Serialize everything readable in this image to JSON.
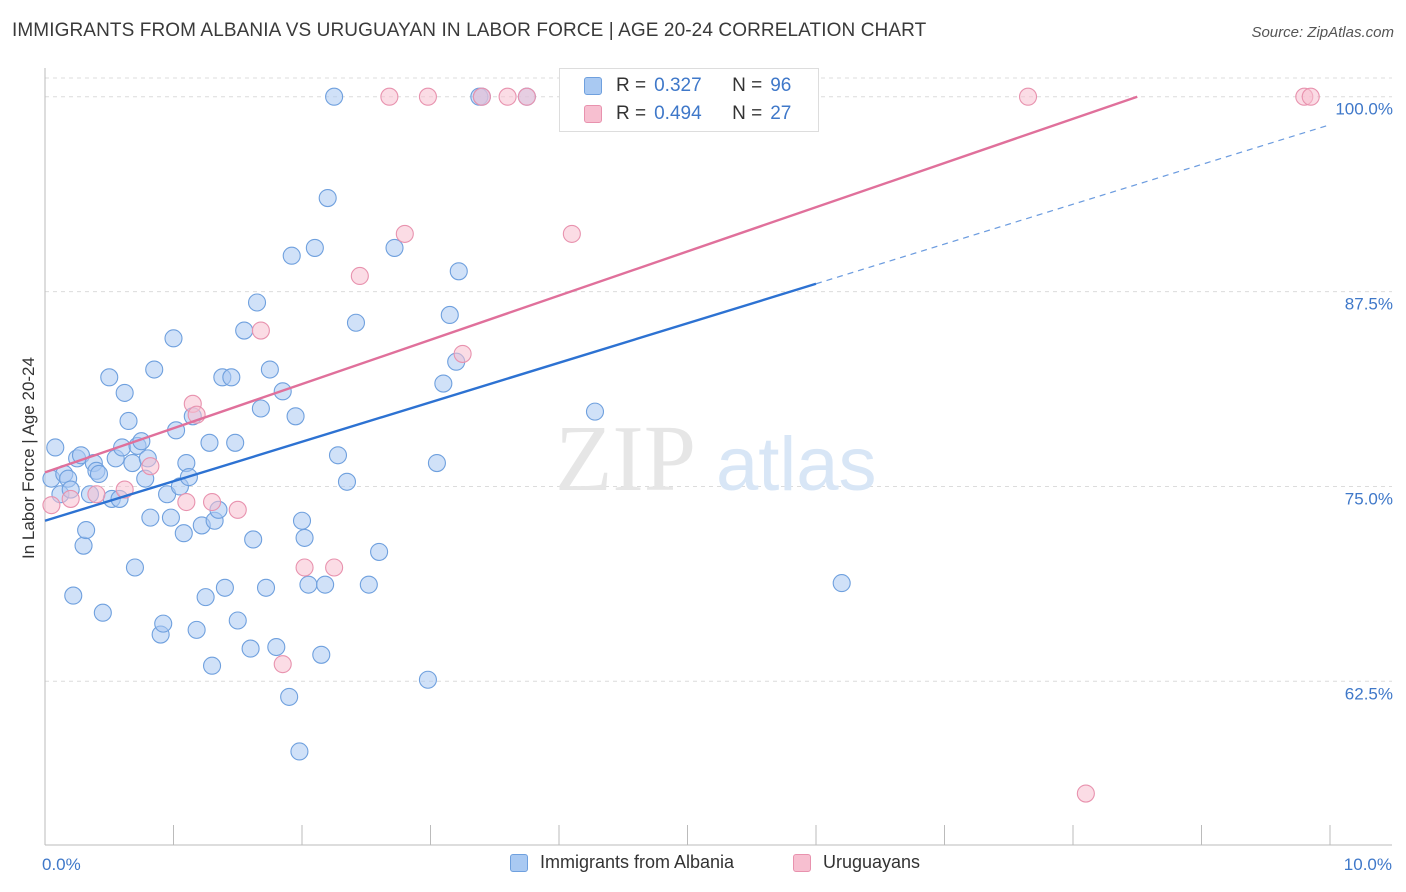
{
  "title": "IMMIGRANTS FROM ALBANIA VS URUGUAYAN IN LABOR FORCE | AGE 20-24 CORRELATION CHART",
  "source": "Source: ZipAtlas.com",
  "watermark": {
    "zip": "ZIP",
    "atlas": "atlas"
  },
  "stats": [
    {
      "r_label": "R =",
      "r_value": "0.327",
      "n_label": "N =",
      "n_value": "96",
      "color": "#a9c9f2",
      "border": "#6fa0de"
    },
    {
      "r_label": "R =",
      "r_value": "0.494",
      "n_label": "N =",
      "n_value": "27",
      "color": "#f7bfd0",
      "border": "#e892ae"
    }
  ],
  "legend": [
    {
      "label": "Immigrants from Albania",
      "color": "#a9c9f2",
      "border": "#6fa0de"
    },
    {
      "label": "Uruguayans",
      "color": "#f7bfd0",
      "border": "#e892ae"
    }
  ],
  "chart_data": {
    "type": "scatter",
    "title": "IMMIGRANTS FROM ALBANIA VS URUGUAYAN IN LABOR FORCE | AGE 20-24 CORRELATION CHART",
    "xlabel": "",
    "ylabel": "In Labor Force | Age 20-24",
    "xlim": [
      0,
      10
    ],
    "ylim": [
      52,
      101.2
    ],
    "x_tick_labels": [
      {
        "value": 0,
        "label": "0.0%"
      },
      {
        "value": 10,
        "label": "10.0%"
      }
    ],
    "y_tick_labels": [
      {
        "value": 62.5,
        "label": "62.5%"
      },
      {
        "value": 75.0,
        "label": "75.0%"
      },
      {
        "value": 87.5,
        "label": "87.5%"
      },
      {
        "value": 100.0,
        "label": "100.0%"
      }
    ],
    "grid": true,
    "legend_position": "bottom",
    "series": [
      {
        "name": "Immigrants from Albania",
        "color": "#a9c9f2",
        "edge": "#6fa0de",
        "line_color": "#2d72d2",
        "trend": {
          "x0": 0.0,
          "y0": 72.8,
          "x1": 6.0,
          "y1": 88.0,
          "dash_x1": 10.0,
          "dash_y1": 98.2
        },
        "points": [
          [
            0.05,
            75.5
          ],
          [
            0.08,
            77.5
          ],
          [
            0.12,
            74.5
          ],
          [
            0.15,
            75.8
          ],
          [
            0.18,
            75.5
          ],
          [
            0.2,
            74.8
          ],
          [
            0.22,
            68.0
          ],
          [
            0.25,
            76.8
          ],
          [
            0.28,
            77.0
          ],
          [
            0.3,
            71.2
          ],
          [
            0.32,
            72.2
          ],
          [
            0.35,
            74.5
          ],
          [
            0.38,
            76.5
          ],
          [
            0.4,
            76.0
          ],
          [
            0.42,
            75.8
          ],
          [
            0.45,
            66.9
          ],
          [
            0.5,
            82.0
          ],
          [
            0.52,
            74.2
          ],
          [
            0.55,
            76.8
          ],
          [
            0.58,
            74.2
          ],
          [
            0.6,
            77.5
          ],
          [
            0.62,
            81.0
          ],
          [
            0.65,
            79.2
          ],
          [
            0.68,
            76.5
          ],
          [
            0.7,
            69.8
          ],
          [
            0.72,
            77.6
          ],
          [
            0.75,
            77.9
          ],
          [
            0.78,
            75.5
          ],
          [
            0.8,
            76.8
          ],
          [
            0.82,
            73.0
          ],
          [
            0.85,
            82.5
          ],
          [
            0.9,
            65.5
          ],
          [
            0.92,
            66.2
          ],
          [
            0.95,
            74.5
          ],
          [
            0.98,
            73.0
          ],
          [
            1.0,
            84.5
          ],
          [
            1.02,
            78.6
          ],
          [
            1.05,
            75.0
          ],
          [
            1.08,
            72.0
          ],
          [
            1.1,
            76.5
          ],
          [
            1.12,
            75.6
          ],
          [
            1.15,
            79.5
          ],
          [
            1.18,
            65.8
          ],
          [
            1.22,
            72.5
          ],
          [
            1.25,
            67.9
          ],
          [
            1.28,
            77.8
          ],
          [
            1.3,
            63.5
          ],
          [
            1.32,
            72.8
          ],
          [
            1.35,
            73.5
          ],
          [
            1.38,
            82.0
          ],
          [
            1.4,
            68.5
          ],
          [
            1.45,
            82.0
          ],
          [
            1.48,
            77.8
          ],
          [
            1.5,
            66.4
          ],
          [
            1.55,
            85.0
          ],
          [
            1.6,
            64.6
          ],
          [
            1.62,
            71.6
          ],
          [
            1.65,
            86.8
          ],
          [
            1.68,
            80.0
          ],
          [
            1.72,
            68.5
          ],
          [
            1.75,
            82.5
          ],
          [
            1.8,
            64.7
          ],
          [
            1.85,
            81.1
          ],
          [
            1.9,
            61.5
          ],
          [
            1.92,
            89.8
          ],
          [
            1.95,
            79.5
          ],
          [
            1.98,
            58.0
          ],
          [
            2.0,
            72.8
          ],
          [
            2.02,
            71.7
          ],
          [
            2.05,
            68.7
          ],
          [
            2.1,
            90.3
          ],
          [
            2.15,
            64.2
          ],
          [
            2.18,
            68.7
          ],
          [
            2.2,
            93.5
          ],
          [
            2.25,
            100.0
          ],
          [
            2.28,
            77.0
          ],
          [
            2.35,
            75.3
          ],
          [
            2.42,
            85.5
          ],
          [
            2.52,
            68.7
          ],
          [
            2.6,
            70.8
          ],
          [
            2.72,
            90.3
          ],
          [
            2.98,
            62.6
          ],
          [
            3.05,
            76.5
          ],
          [
            3.1,
            81.6
          ],
          [
            3.15,
            86.0
          ],
          [
            3.2,
            83.0
          ],
          [
            3.22,
            88.8
          ],
          [
            3.38,
            100.0
          ],
          [
            3.4,
            100.0
          ],
          [
            3.75,
            100.0
          ],
          [
            4.28,
            79.8
          ],
          [
            5.0,
            100.0
          ],
          [
            5.02,
            100.0
          ],
          [
            5.05,
            100.0
          ],
          [
            5.08,
            100.0
          ],
          [
            6.2,
            68.8
          ]
        ]
      },
      {
        "name": "Uruguayans",
        "color": "#f7bfd0",
        "edge": "#e892ae",
        "line_color": "#e0709b",
        "trend": {
          "x0": 0.0,
          "y0": 75.9,
          "x1": 8.5,
          "y1": 100.0
        },
        "points": [
          [
            0.05,
            73.8
          ],
          [
            0.2,
            74.2
          ],
          [
            0.4,
            74.5
          ],
          [
            0.62,
            74.8
          ],
          [
            0.82,
            76.3
          ],
          [
            1.1,
            74.0
          ],
          [
            1.15,
            80.3
          ],
          [
            1.3,
            74.0
          ],
          [
            1.5,
            73.5
          ],
          [
            1.68,
            85.0
          ],
          [
            1.85,
            63.6
          ],
          [
            2.02,
            69.8
          ],
          [
            2.25,
            69.8
          ],
          [
            2.45,
            88.5
          ],
          [
            2.68,
            100.0
          ],
          [
            2.8,
            91.2
          ],
          [
            2.98,
            100.0
          ],
          [
            3.25,
            83.5
          ],
          [
            3.6,
            100.0
          ],
          [
            3.75,
            100.0
          ],
          [
            4.1,
            91.2
          ],
          [
            7.65,
            100.0
          ],
          [
            8.1,
            55.3
          ],
          [
            9.8,
            100.0
          ],
          [
            9.85,
            100.0
          ],
          [
            3.4,
            100.0
          ],
          [
            1.18,
            79.6
          ]
        ]
      }
    ]
  }
}
